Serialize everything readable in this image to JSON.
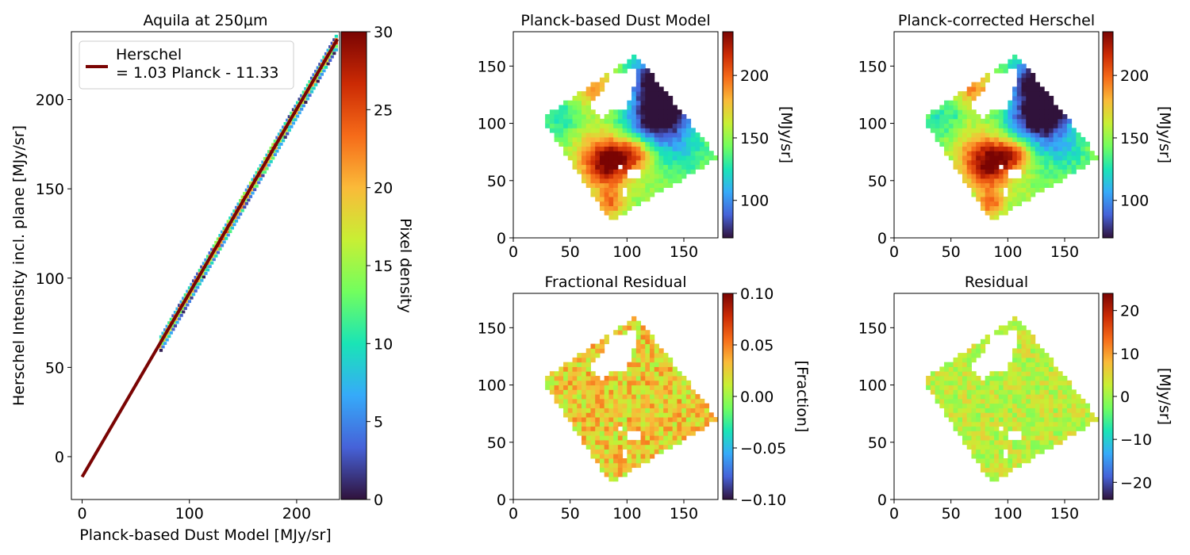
{
  "colormap_stops": [
    "#30123b",
    "#4662d8",
    "#36aaf9",
    "#1ae4b6",
    "#72fe5e",
    "#c8ef34",
    "#faba39",
    "#f66b19",
    "#cb2a04",
    "#7a0403"
  ],
  "fit_line_color": "#7a0403",
  "chart_data": [
    {
      "id": "scatter",
      "type": "heatmap",
      "title": "Aquila at 250µm",
      "xlabel": "Planck-based Dust Model [MJy/sr]",
      "ylabel": "Herschel Intensity incl. plane [MJy/sr]",
      "xlim": [
        -10,
        240
      ],
      "ylim": [
        -24,
        238
      ],
      "xticks": [
        0,
        100,
        200
      ],
      "yticks": [
        0,
        50,
        100,
        150,
        200
      ],
      "legend": {
        "placement": "top-left",
        "label_line1": "Herschel",
        "label_line2": "= 1.03 Planck - 11.33"
      },
      "fit": {
        "slope": 1.03,
        "intercept": -11.33,
        "x": [
          0,
          238
        ]
      },
      "density_band": {
        "x_range": [
          72,
          236
        ],
        "half_width": 4
      },
      "colorbar": {
        "label": "Pixel density",
        "lim": [
          0,
          30
        ],
        "ticks": [
          0,
          5,
          10,
          15,
          20,
          25,
          30
        ]
      }
    },
    {
      "id": "dust",
      "type": "heatmap",
      "title": "Planck-based Dust Model",
      "xlim": [
        0,
        180
      ],
      "ylim": [
        0,
        180
      ],
      "xticks": [
        0,
        50,
        100,
        150
      ],
      "yticks": [
        0,
        50,
        100,
        150
      ],
      "colorbar": {
        "label": "[MJy/sr]",
        "lim": [
          70,
          235
        ],
        "ticks": [
          100,
          150,
          200
        ]
      }
    },
    {
      "id": "corrected",
      "type": "heatmap",
      "title": "Planck-corrected Herschel",
      "xlim": [
        0,
        180
      ],
      "ylim": [
        0,
        180
      ],
      "xticks": [
        0,
        50,
        100,
        150
      ],
      "yticks": [
        0,
        50,
        100,
        150
      ],
      "colorbar": {
        "label": "[MJy/sr]",
        "lim": [
          70,
          235
        ],
        "ticks": [
          100,
          150,
          200
        ]
      }
    },
    {
      "id": "fracres",
      "type": "heatmap",
      "title": "Fractional Residual",
      "xlim": [
        0,
        180
      ],
      "ylim": [
        0,
        180
      ],
      "xticks": [
        0,
        50,
        100,
        150
      ],
      "yticks": [
        0,
        50,
        100,
        150
      ],
      "colorbar": {
        "label": "[Fraction]",
        "lim": [
          -0.1,
          0.1
        ],
        "ticks": [
          0.1,
          0.05,
          0.0,
          -0.05,
          -0.1
        ],
        "tick_labels": [
          "0.10",
          "0.05",
          "0.00",
          "−0.05",
          "−0.10"
        ]
      }
    },
    {
      "id": "residual",
      "type": "heatmap",
      "title": "Residual",
      "xlim": [
        0,
        180
      ],
      "ylim": [
        0,
        180
      ],
      "xticks": [
        0,
        50,
        100,
        150
      ],
      "yticks": [
        0,
        50,
        100,
        150
      ],
      "colorbar": {
        "label": "[MJy/sr]",
        "lim": [
          -24,
          24
        ],
        "ticks": [
          20,
          10,
          0,
          -10,
          -20
        ],
        "tick_labels": [
          "20",
          "10",
          "0",
          "−10",
          "−20"
        ]
      }
    }
  ],
  "maps": {
    "diamond": [
      [
        25,
        105
      ],
      [
        108,
        160
      ],
      [
        180,
        70
      ],
      [
        85,
        14
      ]
    ],
    "holes": [
      {
        "cx": 92,
        "cy": 128,
        "rx": 12,
        "ry": 18
      },
      {
        "cx": 78,
        "cy": 116,
        "rx": 9,
        "ry": 11
      },
      {
        "cx": 104,
        "cy": 140,
        "rx": 6,
        "ry": 8
      },
      {
        "cx": 106,
        "cy": 55,
        "rx": 6,
        "ry": 5
      },
      {
        "cx": 95,
        "cy": 61,
        "rx": 3,
        "ry": 3
      },
      {
        "cx": 98,
        "cy": 40,
        "rx": 4,
        "ry": 3
      }
    ],
    "dust_blobs": [
      {
        "x": 125,
        "y": 105,
        "s": 18,
        "v": -70
      },
      {
        "x": 140,
        "y": 118,
        "s": 16,
        "v": -60
      },
      {
        "x": 120,
        "y": 140,
        "s": 14,
        "v": -65
      },
      {
        "x": 105,
        "y": 92,
        "s": 12,
        "v": -15
      },
      {
        "x": 90,
        "y": 72,
        "s": 14,
        "v": 55
      },
      {
        "x": 80,
        "y": 60,
        "s": 14,
        "v": 50
      },
      {
        "x": 108,
        "y": 75,
        "s": 10,
        "v": 45
      },
      {
        "x": 70,
        "y": 130,
        "s": 12,
        "v": 40
      },
      {
        "x": 45,
        "y": 105,
        "s": 14,
        "v": -25
      },
      {
        "x": 60,
        "y": 95,
        "s": 10,
        "v": 10
      },
      {
        "x": 85,
        "y": 30,
        "s": 8,
        "v": 45
      },
      {
        "x": 150,
        "y": 75,
        "s": 16,
        "v": -25
      },
      {
        "x": 65,
        "y": 75,
        "s": 12,
        "v": 15
      },
      {
        "x": 130,
        "y": 55,
        "s": 14,
        "v": 0
      }
    ],
    "dust_base": 150,
    "fracres_base": 0.025,
    "residual_base": 2
  }
}
